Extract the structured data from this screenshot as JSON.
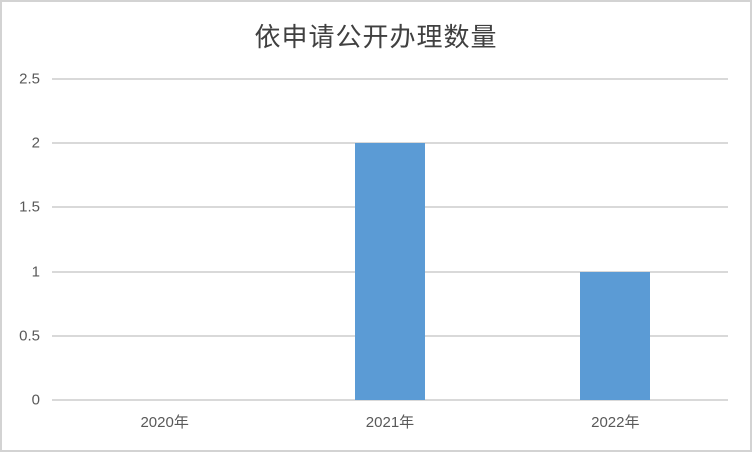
{
  "chart_data": {
    "type": "bar",
    "title": "依申请公开办理数量",
    "categories": [
      "2020年",
      "2021年",
      "2022年"
    ],
    "values": [
      0,
      2,
      1
    ],
    "xlabel": "",
    "ylabel": "",
    "ylim": [
      0,
      2.5
    ],
    "yticks": [
      0,
      0.5,
      1,
      1.5,
      2,
      2.5
    ],
    "ytick_labels": [
      "0",
      "0.5",
      "1",
      "1.5",
      "2",
      "2.5"
    ],
    "grid": true,
    "legend": false,
    "bar_color": "#5B9BD5",
    "gridline_color": "#D9D9D9",
    "axis_text_color": "#595959",
    "title_color": "#404040",
    "border_color": "#D3D3D3",
    "background": "#FFFFFF"
  }
}
